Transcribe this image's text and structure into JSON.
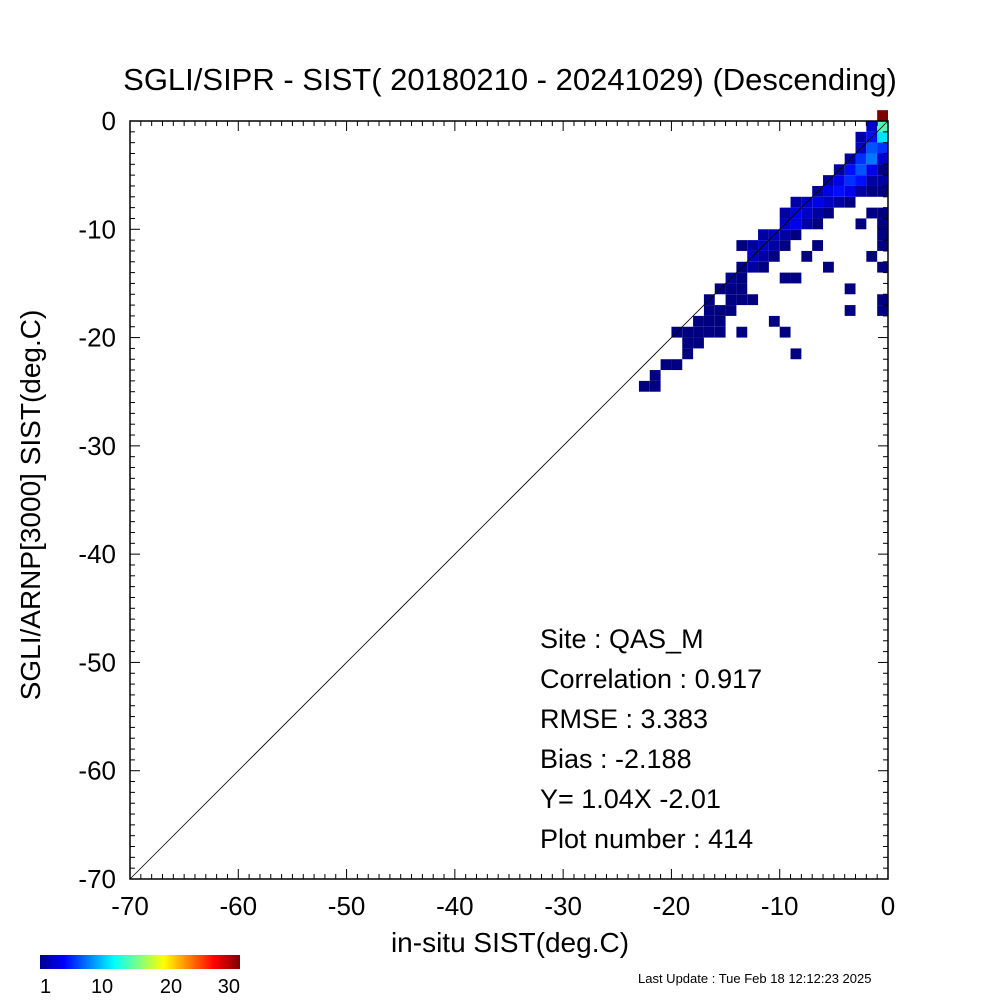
{
  "chart_data": {
    "type": "heatmap",
    "title": "SGLI/SIPR - SIST( 20180210 - 20241029) (Descending)",
    "xlabel": "in-situ SIST(deg.C)",
    "ylabel": "SGLI/ARNP[3000]    SIST(deg.C)",
    "xlim": [
      -70,
      0
    ],
    "ylim": [
      -70,
      0
    ],
    "xticks": [
      -70,
      -60,
      -50,
      -40,
      -30,
      -20,
      -10,
      0
    ],
    "yticks": [
      -70,
      -60,
      -50,
      -40,
      -30,
      -20,
      -10,
      0
    ],
    "reference_line": "y = x",
    "bin_size": 1,
    "colorbar": {
      "min": 1,
      "max": 30,
      "ticks": [
        1,
        10,
        20,
        30
      ]
    },
    "bins": [
      [
        -23,
        -25,
        1
      ],
      [
        -22,
        -25,
        1
      ],
      [
        -22,
        -24,
        1
      ],
      [
        -21,
        -23,
        1
      ],
      [
        -20,
        -23,
        1
      ],
      [
        -19,
        -22,
        1
      ],
      [
        -19,
        -21,
        1
      ],
      [
        -18,
        -21,
        1
      ],
      [
        -20,
        -20,
        1
      ],
      [
        -19,
        -20,
        1
      ],
      [
        -18,
        -20,
        1
      ],
      [
        -17,
        -20,
        1
      ],
      [
        -17,
        -19,
        1
      ],
      [
        -16,
        -19,
        1
      ],
      [
        -18,
        -19,
        1
      ],
      [
        -17,
        -18,
        1
      ],
      [
        -16,
        -18,
        1
      ],
      [
        -15,
        -18,
        1
      ],
      [
        -17,
        -17,
        1
      ],
      [
        -15,
        -17,
        1
      ],
      [
        -14,
        -17,
        1
      ],
      [
        -13,
        -17,
        1
      ],
      [
        -16,
        -16,
        1
      ],
      [
        -15,
        -16,
        1
      ],
      [
        -14,
        -16,
        1
      ],
      [
        -15,
        -15,
        2
      ],
      [
        -14,
        -15,
        1
      ],
      [
        -13,
        -14,
        2
      ],
      [
        -12,
        -14,
        1
      ],
      [
        -14,
        -14,
        1
      ],
      [
        -13,
        -13,
        3
      ],
      [
        -12,
        -13,
        2
      ],
      [
        -11,
        -13,
        1
      ],
      [
        -14,
        -12,
        1
      ],
      [
        -13,
        -12,
        2
      ],
      [
        -12,
        -12,
        3
      ],
      [
        -11,
        -12,
        2
      ],
      [
        -10,
        -12,
        1
      ],
      [
        -12,
        -11,
        2
      ],
      [
        -11,
        -11,
        3
      ],
      [
        -10,
        -11,
        2
      ],
      [
        -9,
        -11,
        1
      ],
      [
        -10,
        -10,
        3
      ],
      [
        -9,
        -10,
        4
      ],
      [
        -8,
        -10,
        2
      ],
      [
        -7,
        -10,
        1
      ],
      [
        -10,
        -9,
        2
      ],
      [
        -9,
        -9,
        4
      ],
      [
        -8,
        -9,
        3
      ],
      [
        -7,
        -9,
        2
      ],
      [
        -6,
        -9,
        1
      ],
      [
        -9,
        -8,
        2
      ],
      [
        -8,
        -8,
        3
      ],
      [
        -7,
        -8,
        4
      ],
      [
        -6,
        -8,
        3
      ],
      [
        -5,
        -8,
        2
      ],
      [
        -4,
        -8,
        1
      ],
      [
        -7,
        -7,
        2
      ],
      [
        -6,
        -7,
        4
      ],
      [
        -5,
        -7,
        5
      ],
      [
        -4,
        -7,
        4
      ],
      [
        -3,
        -7,
        2
      ],
      [
        -6,
        -6,
        2
      ],
      [
        -5,
        -6,
        4
      ],
      [
        -4,
        -6,
        6
      ],
      [
        -3,
        -6,
        5
      ],
      [
        -2,
        -6,
        2
      ],
      [
        -5,
        -5,
        2
      ],
      [
        -4,
        -5,
        5
      ],
      [
        -3,
        -5,
        7
      ],
      [
        -2,
        -5,
        4
      ],
      [
        -1,
        -5,
        1
      ],
      [
        -4,
        -4,
        2
      ],
      [
        -3,
        -4,
        6
      ],
      [
        -2,
        -4,
        8
      ],
      [
        -1,
        -4,
        5
      ],
      [
        -3,
        -3,
        3
      ],
      [
        -2,
        -3,
        7
      ],
      [
        -1,
        -3,
        9
      ],
      [
        -2,
        -2,
        5
      ],
      [
        -1,
        -2,
        8
      ],
      [
        -3,
        -2,
        2
      ],
      [
        -1,
        -1,
        12
      ],
      [
        -2,
        -1,
        3
      ],
      [
        -1,
        0,
        30
      ],
      [
        -1,
        -1,
        14
      ],
      [
        -1,
        -2,
        11
      ],
      [
        -1,
        -3,
        6
      ],
      [
        -1,
        -4,
        3
      ],
      [
        -1,
        -6,
        2
      ],
      [
        -1,
        -7,
        1
      ],
      [
        -1,
        -9,
        1
      ],
      [
        -1,
        -12,
        1
      ],
      [
        -1,
        -14,
        1
      ],
      [
        -1,
        -17,
        1
      ],
      [
        -1,
        -18,
        1
      ],
      [
        -1,
        -11,
        1
      ],
      [
        -1,
        -10,
        1
      ],
      [
        -7,
        -12,
        1
      ],
      [
        -8,
        -13,
        1
      ],
      [
        -9,
        -15,
        1
      ],
      [
        -10,
        -15,
        1
      ],
      [
        -11,
        -19,
        1
      ],
      [
        -10,
        -20,
        1
      ],
      [
        -9,
        -22,
        1
      ],
      [
        -14,
        -20,
        1
      ],
      [
        -16,
        -20,
        1
      ],
      [
        -6,
        -14,
        1
      ],
      [
        -4,
        -16,
        1
      ],
      [
        -4,
        -18,
        1
      ],
      [
        -2,
        -9,
        1
      ],
      [
        -2,
        -13,
        1
      ],
      [
        -3,
        -10,
        1
      ],
      [
        -2,
        -7,
        1
      ]
    ],
    "annotations": [
      "Site : QAS_M",
      "Correlation :    0.917",
      "RMSE :    3.383",
      "Bias :   -2.188",
      "Y=    1.04X  -2.01",
      "Plot number :        414"
    ],
    "footer": "Last Update : Tue Feb 18 12:12:23 2025"
  }
}
